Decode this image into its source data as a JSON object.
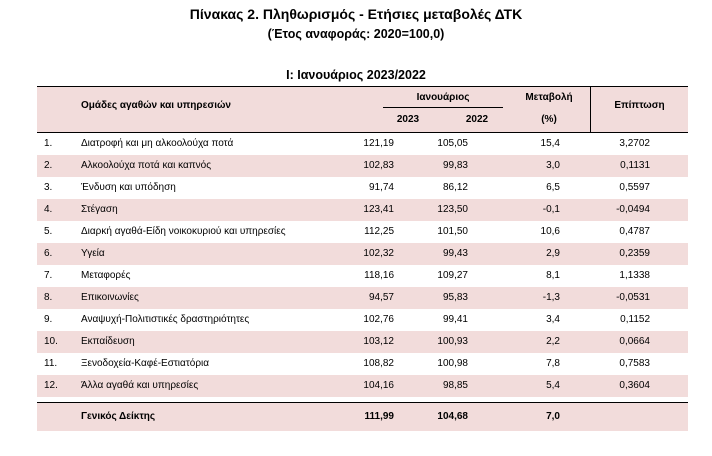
{
  "title": "Πίνακας 2. Πληθωρισμός - Ετήσιες μεταβολές ΔΤΚ",
  "subtitle": "(Έτος αναφοράς: 2020=100,0)",
  "section": "Ι: Ιανουάριος 2023/2022",
  "header": {
    "groups": "Ομάδες αγαθών και υπηρεσιών",
    "month": "Ιανουάριος",
    "year_a": "2023",
    "year_b": "2022",
    "change": "Μεταβολή",
    "change_unit": "(%)",
    "impact": "Επίπτωση"
  },
  "rows": [
    {
      "num": "1.",
      "name": "Διατροφή και μη αλκοολούχα ποτά",
      "a": "121,19",
      "b": "105,05",
      "c": "15,4",
      "d": "3,2702"
    },
    {
      "num": "2.",
      "name": "Αλκοολούχα ποτά και καπνός",
      "a": "102,83",
      "b": "99,83",
      "c": "3,0",
      "d": "0,1131"
    },
    {
      "num": "3.",
      "name": "Ένδυση και υπόδηση",
      "a": "91,74",
      "b": "86,12",
      "c": "6,5",
      "d": "0,5597"
    },
    {
      "num": "4.",
      "name": "Στέγαση",
      "a": "123,41",
      "b": "123,50",
      "c": "-0,1",
      "d": "-0,0494"
    },
    {
      "num": "5.",
      "name": "Διαρκή αγαθά-Είδη νοικοκυριού και υπηρεσίες",
      "a": "112,25",
      "b": "101,50",
      "c": "10,6",
      "d": "0,4787"
    },
    {
      "num": "6.",
      "name": "Υγεία",
      "a": "102,32",
      "b": "99,43",
      "c": "2,9",
      "d": "0,2359"
    },
    {
      "num": "7.",
      "name": "Μεταφορές",
      "a": "118,16",
      "b": "109,27",
      "c": "8,1",
      "d": "1,1338"
    },
    {
      "num": "8.",
      "name": "Επικοινωνίες",
      "a": "94,57",
      "b": "95,83",
      "c": "-1,3",
      "d": "-0,0531"
    },
    {
      "num": "9.",
      "name": "Αναψυχή-Πολιτιστικές δραστηριότητες",
      "a": "102,76",
      "b": "99,41",
      "c": "3,4",
      "d": "0,1152"
    },
    {
      "num": "10.",
      "name": "Εκπαίδευση",
      "a": "103,12",
      "b": "100,93",
      "c": "2,2",
      "d": "0,0664"
    },
    {
      "num": "11.",
      "name": "Ξενοδοχεία-Καφέ-Εστιατόρια",
      "a": "108,82",
      "b": "100,98",
      "c": "7,8",
      "d": "0,7583"
    },
    {
      "num": "12.",
      "name": "Άλλα αγαθά και υπηρεσίες",
      "a": "104,16",
      "b": "98,85",
      "c": "5,4",
      "d": "0,3604"
    }
  ],
  "total": {
    "name": "Γενικός Δείκτης",
    "a": "111,99",
    "b": "104,68",
    "c": "7,0"
  }
}
